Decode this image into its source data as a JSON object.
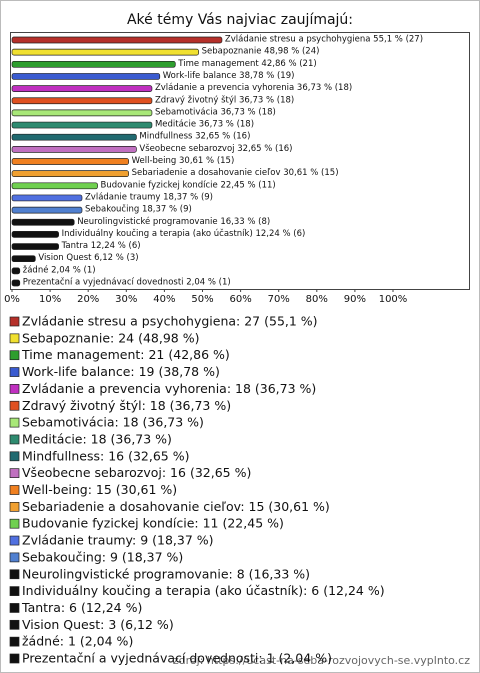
{
  "chart_data": {
    "type": "bar",
    "orientation": "horizontal",
    "title": "Aké témy Vás najviac zaujímajú:",
    "categories": [
      "Zvládanie stresu a psychohygiena",
      "Sebapoznanie",
      "Time management",
      "Work-life balance",
      "Zvládanie a prevencia vyhorenia",
      "Zdravý životný štýl",
      "Sebamotivácia",
      "Meditácie",
      "Mindfullness",
      "Všeobecne sebarozvoj",
      "Well-being",
      "Sebariadenie a dosahovanie cieľov",
      "Budovanie fyzickej kondície",
      "Zvládanie traumy",
      "Sebakoučing",
      "Neurolingvistické programovanie",
      "Individuálny koučing a terapia (ako účastník)",
      "Tantra",
      "Vision Quest",
      "žádné",
      "Prezentační a vyjednávací dovednosti"
    ],
    "values": [
      55.1,
      48.98,
      42.86,
      38.78,
      36.73,
      36.73,
      36.73,
      36.73,
      32.65,
      32.65,
      30.61,
      30.61,
      22.45,
      18.37,
      18.37,
      16.33,
      12.24,
      12.24,
      6.12,
      2.04,
      2.04
    ],
    "value_labels": [
      "Zvládanie stresu a psychohygiena 55,1 % (27)",
      "Sebapoznanie 48,98 % (24)",
      "Time management 42,86 % (21)",
      "Work-life balance 38,78 % (19)",
      "Zvládanie a prevencia vyhorenia 36,73 % (18)",
      "Zdravý životný štýl 36,73 % (18)",
      "Sebamotivácia 36,73 % (18)",
      "Meditácie 36,73 % (18)",
      "Mindfullness 32,65 % (16)",
      "Všeobecne sebarozvoj 32,65 % (16)",
      "Well-being 30,61 % (15)",
      "Sebariadenie a dosahovanie cieľov 30,61 % (15)",
      "Budovanie fyzickej kondície 22,45 % (11)",
      "Zvládanie traumy 18,37 % (9)",
      "Sebakoučing 18,37 % (9)",
      "Neurolingvistické programovanie 16,33 % (8)",
      "Individuálny koučing a terapia (ako účastník) 12,24 % (6)",
      "Tantra 12,24 % (6)",
      "Vision Quest 6,12 % (3)",
      "žádné 2,04 % (1)",
      "Prezentační a vyjednávací dovednosti 2,04 % (1)"
    ],
    "legend_labels": [
      "Zvládanie stresu a psychohygiena: 27 (55,1 %)",
      "Sebapoznanie: 24 (48,98 %)",
      "Time management: 21 (42,86 %)",
      "Work-life balance: 19 (38,78 %)",
      "Zvládanie a prevencia vyhorenia: 18 (36,73 %)",
      "Zdravý životný štýl: 18 (36,73 %)",
      "Sebamotivácia: 18 (36,73 %)",
      "Meditácie: 18 (36,73 %)",
      "Mindfullness: 16 (32,65 %)",
      "Všeobecne sebarozvoj: 16 (32,65 %)",
      "Well-being: 15 (30,61 %)",
      "Sebariadenie a dosahovanie cieľov: 15 (30,61 %)",
      "Budovanie fyzickej kondície: 11 (22,45 %)",
      "Zvládanie traumy: 9 (18,37 %)",
      "Sebakoučing: 9 (18,37 %)",
      "Neurolingvistické programovanie: 8 (16,33 %)",
      "Individuálny koučing a terapia (ako účastník): 6 (12,24 %)",
      "Tantra: 6 (12,24 %)",
      "Vision Quest: 3 (6,12 %)",
      "žádné: 1 (2,04 %)",
      "Prezentační a vyjednávací dovednosti: 1 (2,04 %)"
    ],
    "colors": [
      "#b5302a",
      "#f0e030",
      "#2e9e2e",
      "#3a5bd0",
      "#c030c0",
      "#e05020",
      "#a8e878",
      "#2e8b70",
      "#206a70",
      "#c070c0",
      "#f08020",
      "#f0a030",
      "#70d050",
      "#5070e0",
      "#5080d0",
      "#111111",
      "#111111",
      "#111111",
      "#111111",
      "#111111",
      "#111111"
    ],
    "xlim": [
      0,
      100
    ],
    "xticks": [
      {
        "value": 0,
        "label": "0%"
      },
      {
        "value": 10,
        "label": "10%"
      },
      {
        "value": 20,
        "label": "20%"
      },
      {
        "value": 30,
        "label": "30%"
      },
      {
        "value": 40,
        "label": "40%"
      },
      {
        "value": 50,
        "label": "50%"
      },
      {
        "value": 60,
        "label": "60%"
      },
      {
        "value": 70,
        "label": "70%"
      },
      {
        "value": 80,
        "label": "80%"
      },
      {
        "value": 90,
        "label": "90%"
      },
      {
        "value": 100,
        "label": "100%"
      }
    ],
    "source": "zdroj: https://ucast-na-seba-rozvojovych-se.vyplnto.cz"
  }
}
